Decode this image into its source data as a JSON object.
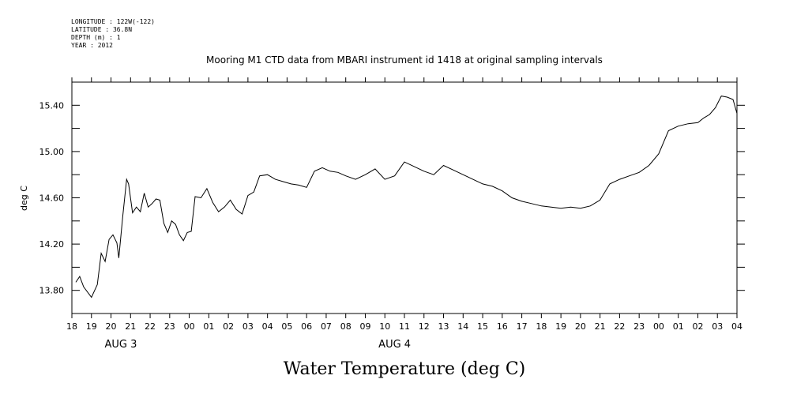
{
  "header": {
    "lines": [
      "LONGITUDE : 122W(-122)",
      "LATITUDE : 36.8N",
      "DEPTH (m) : 1",
      "YEAR : 2012"
    ]
  },
  "chart_data": {
    "type": "line",
    "title": "Mooring M1 CTD data from MBARI instrument id 1418 at original sampling intervals",
    "ylabel": "deg C",
    "caption": "Water Temperature (deg C)",
    "ylim": [
      13.6,
      15.6
    ],
    "yticks": [
      13.8,
      14.2,
      14.6,
      15.0,
      15.4
    ],
    "ytick_labels": [
      "13.80",
      "14.20",
      "14.60",
      "15.00",
      "15.40"
    ],
    "xlim": [
      18,
      52
    ],
    "xticks": [
      18,
      19,
      20,
      21,
      22,
      23,
      24,
      25,
      26,
      27,
      28,
      29,
      30,
      31,
      32,
      33,
      34,
      35,
      36,
      37,
      38,
      39,
      40,
      41,
      42,
      43,
      44,
      45,
      46,
      47,
      48,
      49,
      50,
      51,
      52
    ],
    "xtick_labels": [
      "18",
      "19",
      "20",
      "21",
      "22",
      "23",
      "00",
      "01",
      "02",
      "03",
      "04",
      "05",
      "06",
      "07",
      "08",
      "09",
      "10",
      "11",
      "12",
      "13",
      "14",
      "15",
      "16",
      "17",
      "18",
      "19",
      "20",
      "21",
      "22",
      "23",
      "00",
      "01",
      "02",
      "03",
      "04"
    ],
    "date_labels": [
      {
        "at": 20.5,
        "text": "AUG  3"
      },
      {
        "at": 34.5,
        "text": "AUG  4"
      }
    ],
    "grid": false,
    "series": [
      {
        "x": [
          18.2,
          18.4,
          18.6,
          19.0,
          19.3,
          19.5,
          19.7,
          19.9,
          20.1,
          20.3,
          20.4,
          20.6,
          20.8,
          20.9,
          21.1,
          21.3,
          21.5,
          21.7,
          21.9,
          22.1,
          22.3,
          22.5,
          22.7,
          22.9,
          23.1,
          23.3,
          23.5,
          23.7,
          23.9,
          24.1,
          24.3,
          24.6,
          24.9,
          25.2,
          25.5,
          25.8,
          26.1,
          26.4,
          26.7,
          27.0,
          27.3,
          27.6,
          28.0,
          28.4,
          28.8,
          29.2,
          29.6,
          30.0,
          30.4,
          30.8,
          31.2,
          31.6,
          32.0,
          32.5,
          33.0,
          33.5,
          34.0,
          34.5,
          35.0,
          35.5,
          36.0,
          36.5,
          37.0,
          37.5,
          38.0,
          38.5,
          39.0,
          39.5,
          40.0,
          40.5,
          41.0,
          41.5,
          42.0,
          42.5,
          43.0,
          43.5,
          44.0,
          44.5,
          45.0,
          45.5,
          46.0,
          46.5,
          47.0,
          47.5,
          48.0,
          48.5,
          49.0,
          49.5,
          50.0,
          50.3,
          50.6,
          50.9,
          51.2,
          51.5,
          51.8,
          52.0
        ],
        "y": [
          13.87,
          13.92,
          13.83,
          13.74,
          13.85,
          14.12,
          14.05,
          14.24,
          14.28,
          14.21,
          14.08,
          14.44,
          14.76,
          14.72,
          14.47,
          14.52,
          14.48,
          14.64,
          14.52,
          14.55,
          14.59,
          14.58,
          14.38,
          14.3,
          14.4,
          14.37,
          14.28,
          14.23,
          14.3,
          14.31,
          14.61,
          14.6,
          14.68,
          14.56,
          14.48,
          14.52,
          14.58,
          14.5,
          14.46,
          14.62,
          14.65,
          14.79,
          14.8,
          14.76,
          14.74,
          14.72,
          14.71,
          14.69,
          14.83,
          14.86,
          14.83,
          14.82,
          14.79,
          14.76,
          14.8,
          14.85,
          14.76,
          14.79,
          14.91,
          14.87,
          14.83,
          14.8,
          14.88,
          14.84,
          14.8,
          14.76,
          14.72,
          14.7,
          14.66,
          14.6,
          14.57,
          14.55,
          14.53,
          14.52,
          14.51,
          14.52,
          14.51,
          14.53,
          14.58,
          14.72,
          14.76,
          14.79,
          14.82,
          14.88,
          14.98,
          15.18,
          15.22,
          15.24,
          15.25,
          15.29,
          15.32,
          15.38,
          15.48,
          15.47,
          15.45,
          15.33
        ]
      }
    ]
  }
}
